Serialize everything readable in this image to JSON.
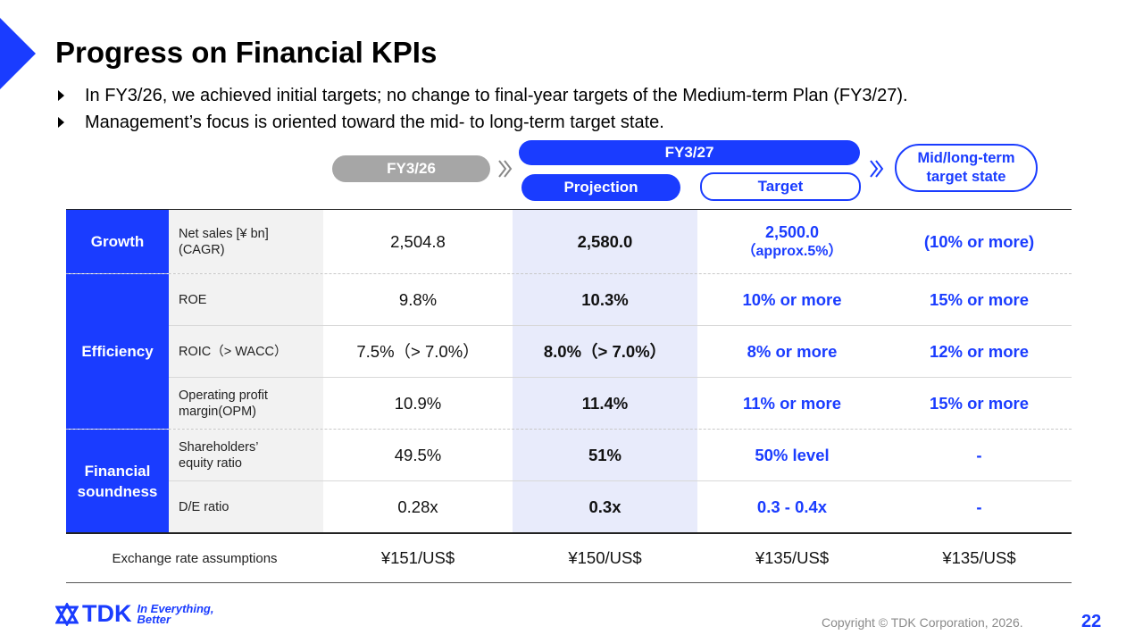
{
  "title": "Progress on Financial KPIs",
  "bullets": [
    "In FY3/26, we achieved initial targets; no change to final-year targets of the Medium-term Plan (FY3/27).",
    "Management’s focus is oriented toward the mid- to long-term target state."
  ],
  "headers": {
    "fy26": "FY3/26",
    "fy27": "FY3/27",
    "projection": "Projection",
    "target": "Target",
    "mid_line1": "Mid/long-term",
    "mid_line2": "target state"
  },
  "categories": {
    "growth": "Growth",
    "efficiency": "Efficiency",
    "financial_line1": "Financial",
    "financial_line2": "soundness"
  },
  "rows": [
    {
      "label_line1": "Net sales [¥ bn]",
      "label_line2": "(CAGR)",
      "fy26": "2,504.8",
      "projection": "2,580.0",
      "target_line1": "2,500.0",
      "target_line2": "（approx.5%）",
      "mid": "(10% or more)"
    },
    {
      "label_line1": "ROE",
      "label_line2": "",
      "fy26": "9.8%",
      "projection": "10.3%",
      "target_line1": "10% or more",
      "target_line2": "",
      "mid": "15% or more"
    },
    {
      "label_line1": "ROIC（> WACC）",
      "label_line2": "",
      "fy26": "7.5%（> 7.0%）",
      "projection": "8.0%（> 7.0%）",
      "target_line1": "8% or more",
      "target_line2": "",
      "mid": "12% or more"
    },
    {
      "label_line1": "Operating profit",
      "label_line2": "margin(OPM)",
      "fy26": "10.9%",
      "projection": "11.4%",
      "target_line1": "11% or more",
      "target_line2": "",
      "mid": "15% or more"
    },
    {
      "label_line1": "Shareholders’",
      "label_line2": "equity ratio",
      "fy26": "49.5%",
      "projection": "51%",
      "target_line1": "50% level",
      "target_line2": "",
      "mid": "-"
    },
    {
      "label_line1": "D/E ratio",
      "label_line2": "",
      "fy26": "0.28x",
      "projection": "0.3x",
      "target_line1": "0.3 - 0.4x",
      "target_line2": "",
      "mid": "-"
    }
  ],
  "exchange": {
    "label": "Exchange rate assumptions",
    "fy26": "¥151/US$",
    "projection": "¥150/US$",
    "target": "¥135/US$",
    "mid": "¥135/US$"
  },
  "logo": {
    "brand": "TDK",
    "tag_line1": "In Everything,",
    "tag_line2": "Better"
  },
  "footer": {
    "copyright": "Copyright © TDK Corporation, 2026.",
    "page": "22"
  },
  "colors": {
    "accent": "#1a3cff",
    "grey_pill": "#a6a6a6",
    "projection_band": "#e8ebfb",
    "label_bg": "#f2f2f2"
  }
}
